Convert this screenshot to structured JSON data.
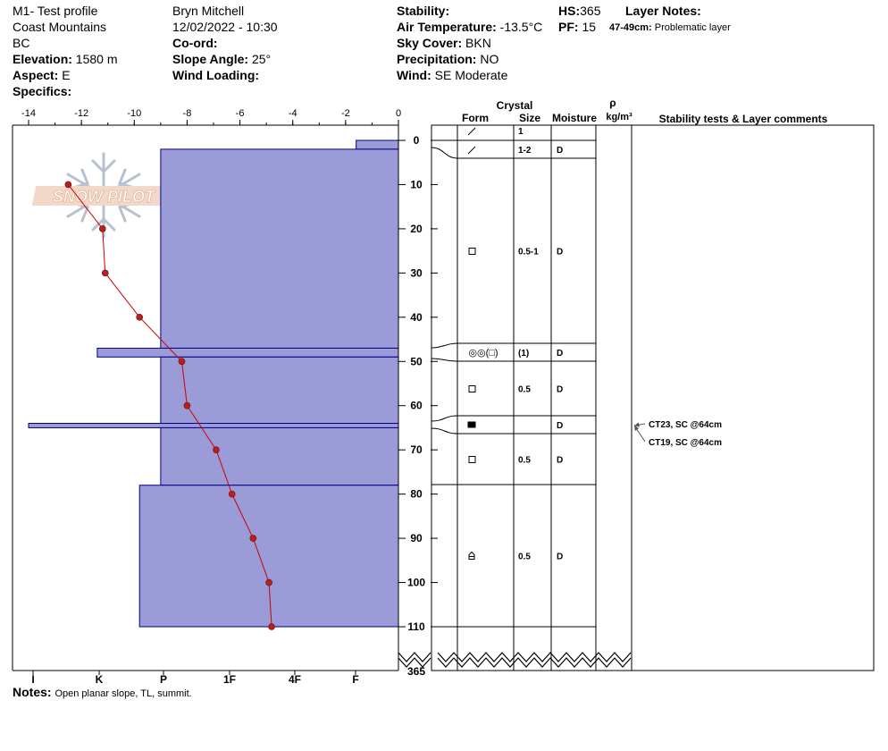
{
  "header": {
    "title": "M1- Test profile",
    "region": "Coast Mountains",
    "province": "BC",
    "elevation_label": "Elevation:",
    "elevation_value": "1580 m",
    "aspect_label": "Aspect:",
    "aspect_value": "E",
    "specifics_label": "Specifics:",
    "observer": "Bryn Mitchell",
    "datetime": "12/02/2022 - 10:30",
    "coord_label": "Co-ord:",
    "slope_label": "Slope Angle:",
    "slope_value": "25°",
    "wind_loading_label": "Wind Loading:",
    "stability_label": "Stability:",
    "air_temp_label": "Air Temperature:",
    "air_temp_value": "-13.5°C",
    "sky_label": "Sky Cover:",
    "sky_value": "BKN",
    "precip_label": "Precipitation:",
    "precip_value": "NO",
    "wind_label": "Wind:",
    "wind_value": "SE Moderate",
    "hs_label": "HS:",
    "hs_value": "365",
    "pf_label": "PF:",
    "pf_value": "15",
    "layer_notes_label": "Layer Notes:",
    "layer_note_range": "47-49cm:",
    "layer_note_text": "Problematic layer"
  },
  "logo_text": "SNOW PILOT",
  "notes": {
    "label": "Notes:",
    "text": "Open planar slope, TL, summit."
  },
  "table_headers": {
    "crystal": "Crystal",
    "form": "Form",
    "size": "Size",
    "moisture": "Moisture",
    "rho": "ρ",
    "density_unit": "kg/m³",
    "comments": "Stability tests & Layer comments"
  },
  "chart_data": {
    "type": "snow-profile",
    "temperature_axis": {
      "ticks": [
        "-14",
        "-12",
        "-10",
        "-8",
        "-6",
        "-4",
        "-2",
        "0"
      ],
      "min": -14,
      "max": 0
    },
    "depth_axis": {
      "ticks": [
        "0",
        "10",
        "20",
        "30",
        "40",
        "50",
        "60",
        "70",
        "80",
        "90",
        "100",
        "110"
      ],
      "min": 0,
      "max": 110,
      "bottom_label": "365"
    },
    "hardness_axis": {
      "labels": [
        "I",
        "K",
        "P",
        "1F",
        "4F",
        "F"
      ]
    },
    "hardness_layers": [
      {
        "top": 0,
        "bottom": 2,
        "temp_extent": -1.6
      },
      {
        "top": 2,
        "bottom": 47,
        "temp_extent": -9.0
      },
      {
        "top": 47,
        "bottom": 49,
        "temp_extent": -11.4
      },
      {
        "top": 49,
        "bottom": 64,
        "temp_extent": -9.0
      },
      {
        "top": 64,
        "bottom": 65,
        "temp_extent": -14.0
      },
      {
        "top": 65,
        "bottom": 78,
        "temp_extent": -9.0
      },
      {
        "top": 78,
        "bottom": 110,
        "temp_extent": -9.8
      }
    ],
    "temperature_profile": [
      {
        "depth": 10,
        "temp": -12.5
      },
      {
        "depth": 20,
        "temp": -11.2
      },
      {
        "depth": 30,
        "temp": -11.1
      },
      {
        "depth": 40,
        "temp": -9.8
      },
      {
        "depth": 50,
        "temp": -8.2
      },
      {
        "depth": 60,
        "temp": -8.0
      },
      {
        "depth": 70,
        "temp": -6.9
      },
      {
        "depth": 80,
        "temp": -6.3
      },
      {
        "depth": 90,
        "temp": -5.5
      },
      {
        "depth": 100,
        "temp": -4.9
      },
      {
        "depth": 110,
        "temp": -4.8
      }
    ],
    "layers": [
      {
        "top": 0,
        "bottom": 2,
        "form": "precipitation-particle",
        "size": "1",
        "moisture": ""
      },
      {
        "top": 2,
        "bottom": 4,
        "form": "precipitation-particle",
        "size": "1-2",
        "moisture": "D"
      },
      {
        "top": 4,
        "bottom": 47,
        "form": "faceted-crystal",
        "size": "0.5-1",
        "moisture": "D"
      },
      {
        "top": 47,
        "bottom": 49,
        "form": "surface-hoar-with-facets",
        "form_text": "◎◎(□)",
        "size": "(1)",
        "moisture": "D"
      },
      {
        "top": 49,
        "bottom": 62,
        "form": "faceted-crystal",
        "size": "0.5",
        "moisture": "D"
      },
      {
        "top": 62,
        "bottom": 66,
        "form": "ice-crust",
        "size": "",
        "moisture": "D"
      },
      {
        "top": 66,
        "bottom": 78,
        "form": "faceted-crystal",
        "size": "0.5",
        "moisture": "D"
      },
      {
        "top": 78,
        "bottom": 110,
        "form": "depth-hoar",
        "size": "0.5",
        "moisture": "D"
      }
    ],
    "stability_tests": [
      {
        "text": "CT23, SC @64cm",
        "depth": 64
      },
      {
        "text": "CT19, SC @64cm",
        "depth": 64
      }
    ],
    "colors": {
      "hardness_fill": "#9b9bd7",
      "hardness_stroke": "#00008b",
      "temp_line": "#cc0000",
      "temp_point": "#b22222"
    }
  }
}
